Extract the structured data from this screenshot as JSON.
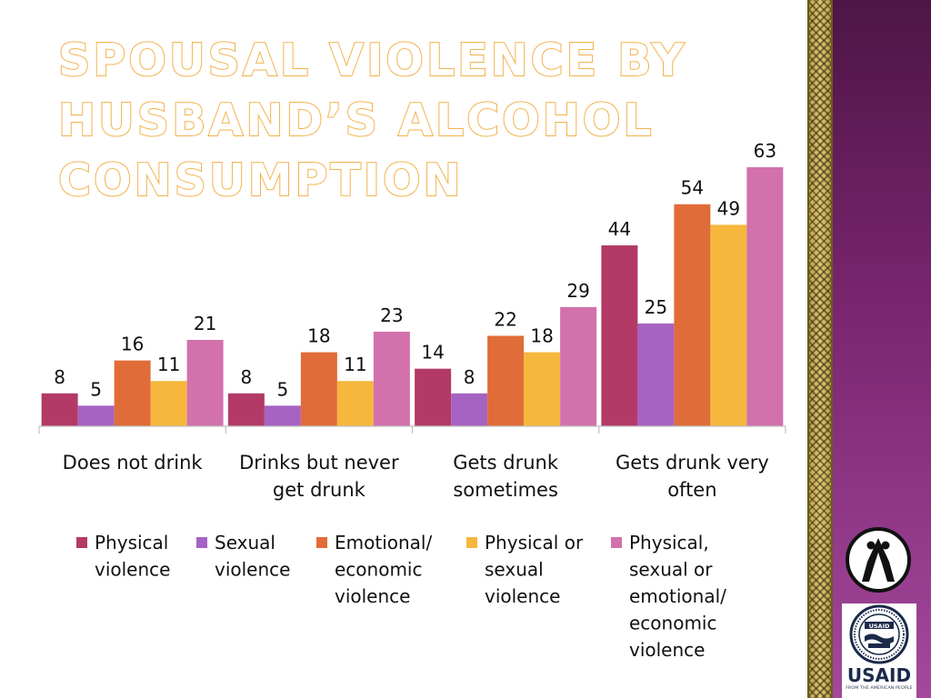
{
  "title_lines": [
    "SPOUSAL VIOLENCE BY",
    "HUSBAND’S ALCOHOL",
    "CONSUMPTION"
  ],
  "colors": {
    "physical": "#b33a66",
    "sexual": "#a663c2",
    "emotional": "#e06c39",
    "physical_or_sexual": "#f6b73c",
    "any": "#d271ac",
    "title_outline": "#f2b24d",
    "side_panel": "#7a2670"
  },
  "chart_data": {
    "type": "bar",
    "categories": [
      [
        "Does not drink"
      ],
      [
        "Drinks but never",
        "get drunk"
      ],
      [
        "Gets drunk",
        "sometimes"
      ],
      [
        "Gets drunk very",
        "often"
      ]
    ],
    "series": [
      {
        "name": [
          "Physical",
          "violence"
        ],
        "values": [
          8,
          8,
          14,
          44
        ]
      },
      {
        "name": [
          "Sexual",
          "violence"
        ],
        "values": [
          5,
          5,
          8,
          25
        ]
      },
      {
        "name": [
          "Emotional/",
          "economic",
          "violence"
        ],
        "values": [
          16,
          18,
          22,
          54
        ]
      },
      {
        "name": [
          "Physical or",
          "sexual",
          "violence"
        ],
        "values": [
          11,
          11,
          18,
          49
        ]
      },
      {
        "name": [
          "Physical,",
          "sexual or",
          "emotional/",
          "economic",
          "violence"
        ],
        "values": [
          21,
          23,
          29,
          63
        ]
      }
    ],
    "ylim": [
      0,
      63
    ],
    "legend_position": "bottom",
    "grid": false
  },
  "logos": {
    "usaid_wordmark": "USAID",
    "usaid_tagline": "FROM THE AMERICAN PEOPLE",
    "usaid_seal_text": "UNITED STATES AGENCY INTERNATIONAL DEVELOPMENT",
    "usaid_seal_inner": "USAID",
    "circle_logo_icon": "ribbon-figures-icon"
  }
}
